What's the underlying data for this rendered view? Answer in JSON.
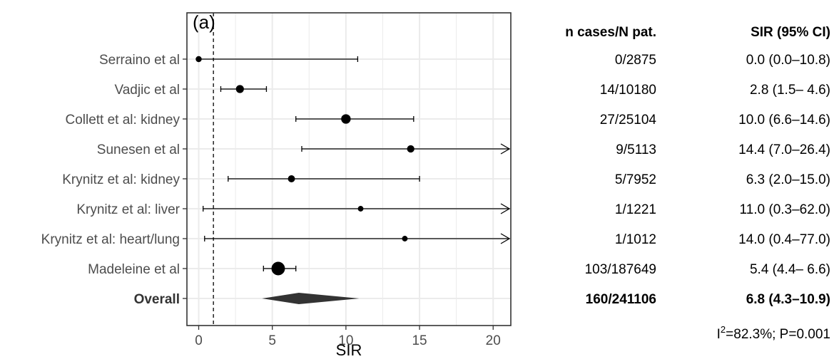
{
  "panel_tag": "(a)",
  "chart_data": {
    "type": "forest",
    "xlabel": "SIR",
    "xlim": [
      -0.8,
      21.2
    ],
    "xticks": [
      0,
      5,
      10,
      15,
      20
    ],
    "minor_gridlines": [
      2.5,
      7.5,
      12.5,
      17.5
    ],
    "reference_line": 1,
    "grid": true,
    "studies": [
      {
        "label": "Serraino et al",
        "sir": 0.0,
        "lower": 0.0,
        "upper": 10.8,
        "weight": 0.8,
        "arrow": false,
        "cases": "0/2875",
        "ci_text": "0.0 (0.0–10.8)"
      },
      {
        "label": "Vadjic et al",
        "sir": 2.8,
        "lower": 1.5,
        "upper": 4.6,
        "weight": 1.4,
        "arrow": false,
        "cases": "14/10180",
        "ci_text": "2.8 (1.5– 4.6)"
      },
      {
        "label": "Collett et al: kidney",
        "sir": 10.0,
        "lower": 6.6,
        "upper": 14.6,
        "weight": 2.0,
        "arrow": false,
        "cases": "27/25104",
        "ci_text": "10.0 (6.6–14.6)"
      },
      {
        "label": "Sunesen et al",
        "sir": 14.4,
        "lower": 7.0,
        "upper": 26.4,
        "weight": 1.2,
        "arrow": true,
        "cases": "9/5113",
        "ci_text": "14.4 (7.0–26.4)"
      },
      {
        "label": "Krynitz et al: kidney",
        "sir": 6.3,
        "lower": 2.0,
        "upper": 15.0,
        "weight": 1.1,
        "arrow": false,
        "cases": "5/7952",
        "ci_text": "6.3 (2.0–15.0)"
      },
      {
        "label": "Krynitz et al: liver",
        "sir": 11.0,
        "lower": 0.3,
        "upper": 62.0,
        "weight": 0.7,
        "arrow": true,
        "cases": "1/1221",
        "ci_text": "11.0 (0.3–62.0)"
      },
      {
        "label": "Krynitz et al: heart/lung",
        "sir": 14.0,
        "lower": 0.4,
        "upper": 77.0,
        "weight": 0.7,
        "arrow": true,
        "cases": "1/1012",
        "ci_text": "14.0 (0.4–77.0)"
      },
      {
        "label": "Madeleine et al",
        "sir": 5.4,
        "lower": 4.4,
        "upper": 6.6,
        "weight": 4.0,
        "arrow": false,
        "cases": "103/187649",
        "ci_text": "5.4 (4.4– 6.6)"
      }
    ],
    "overall": {
      "label": "Overall",
      "sir": 6.8,
      "lower": 4.3,
      "upper": 10.9,
      "cases": "160/241106",
      "ci_text": "6.8 (4.3–10.9)"
    },
    "columns": {
      "cases_header": "n cases/N pat.",
      "ci_header": "SIR (95% CI)"
    },
    "heterogeneity": {
      "i2_label": "I",
      "i2_sup": "2",
      "text": "=82.3%; P=0.001"
    }
  },
  "colors": {
    "panel_border": "#333333",
    "gridline": "#ebebeb",
    "point": "#000000",
    "diamond": "#333333"
  }
}
